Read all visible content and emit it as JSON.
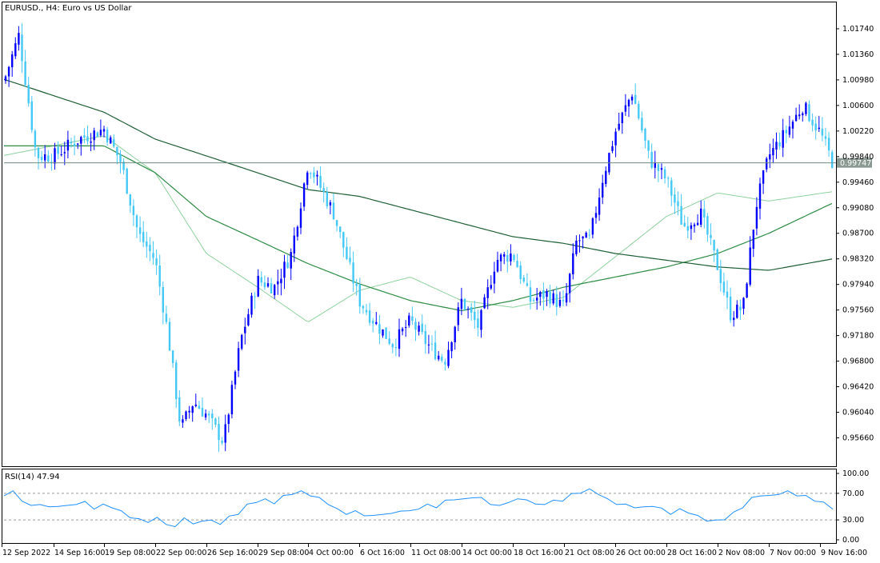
{
  "header": {
    "symbol_label": "EURUSD., H4:  Euro vs US Dollar"
  },
  "rsi_panel": {
    "label": "RSI(14) 47.94",
    "y_ticks": [
      "100.00",
      "70.00",
      "30.00",
      "0.00"
    ]
  },
  "current_price_label": "0.99747",
  "colors": {
    "bull_candle": "#0000ff",
    "bear_candle": "#44c8f5",
    "ma_fast": "#8fd19e",
    "ma_mid": "#2e8b44",
    "ma_slow": "#1f5f35",
    "rsi_line": "#1e90ff",
    "price_line": "#6b8e7f"
  },
  "chart_data": [
    {
      "type": "candlestick",
      "title": "EURUSD., H4:  Euro vs US Dollar",
      "timeframe": "H4",
      "x_ticks": [
        "12 Sep 2022",
        "14 Sep 16:00",
        "19 Sep 08:00",
        "22 Sep 00:00",
        "26 Sep 16:00",
        "29 Sep 08:00",
        "4 Oct 00:00",
        "6 Oct 16:00",
        "11 Oct 08:00",
        "14 Oct 00:00",
        "18 Oct 16:00",
        "21 Oct 08:00",
        "26 Oct 00:00",
        "28 Oct 16:00",
        "2 Nov 08:00",
        "7 Nov 00:00",
        "9 Nov 16:00"
      ],
      "y_ticks": [
        "1.01740",
        "1.01360",
        "1.00980",
        "1.00600",
        "1.00220",
        "0.99840",
        "0.99460",
        "0.99080",
        "0.98700",
        "0.98320",
        "0.97940",
        "0.97560",
        "0.97180",
        "0.96800",
        "0.96420",
        "0.96040",
        "0.95660"
      ],
      "ylim": [
        0.9525,
        1.0212
      ],
      "last_price": 0.99747,
      "anchors": [
        {
          "t": "12 Sep 2022",
          "v": 1.0085
        },
        {
          "t": "13 Sep",
          "v": 1.0165
        },
        {
          "t": "13 Sep 16:00",
          "v": 0.9985
        },
        {
          "t": "14 Sep 16:00",
          "v": 0.9985
        },
        {
          "t": "16 Sep",
          "v": 1.001
        },
        {
          "t": "19 Sep 08:00",
          "v": 1.0025
        },
        {
          "t": "20 Sep",
          "v": 0.9975
        },
        {
          "t": "21 Sep",
          "v": 0.987
        },
        {
          "t": "22 Sep 00:00",
          "v": 0.983
        },
        {
          "t": "23 Sep",
          "v": 0.972
        },
        {
          "t": "23 Sep 16:00",
          "v": 0.958
        },
        {
          "t": "26 Sep",
          "v": 0.962
        },
        {
          "t": "26 Sep 16:00",
          "v": 0.96
        },
        {
          "t": "27 Sep",
          "v": 0.956
        },
        {
          "t": "28 Sep",
          "v": 0.971
        },
        {
          "t": "29 Sep 08:00",
          "v": 0.98
        },
        {
          "t": "30 Sep",
          "v": 0.979
        },
        {
          "t": "3 Oct",
          "v": 0.984
        },
        {
          "t": "4 Oct 00:00",
          "v": 0.9975
        },
        {
          "t": "5 Oct",
          "v": 0.99
        },
        {
          "t": "6 Oct 16:00",
          "v": 0.977
        },
        {
          "t": "7 Oct",
          "v": 0.9735
        },
        {
          "t": "10 Oct",
          "v": 0.9705
        },
        {
          "t": "11 Oct 08:00",
          "v": 0.974
        },
        {
          "t": "12 Oct",
          "v": 0.9705
        },
        {
          "t": "13 Oct",
          "v": 0.968
        },
        {
          "t": "14 Oct 00:00",
          "v": 0.977
        },
        {
          "t": "14 Oct 16:00",
          "v": 0.973
        },
        {
          "t": "17 Oct",
          "v": 0.983
        },
        {
          "t": "18 Oct 16:00",
          "v": 0.984
        },
        {
          "t": "19 Oct",
          "v": 0.977
        },
        {
          "t": "20 Oct",
          "v": 0.978
        },
        {
          "t": "21 Oct 08:00",
          "v": 0.976
        },
        {
          "t": "21 Oct 16:00",
          "v": 0.986
        },
        {
          "t": "24 Oct",
          "v": 0.986
        },
        {
          "t": "25 Oct",
          "v": 0.995
        },
        {
          "t": "26 Oct 00:00",
          "v": 1.002
        },
        {
          "t": "26 Oct 16:00",
          "v": 1.008
        },
        {
          "t": "27 Oct",
          "v": 0.998
        },
        {
          "t": "28 Oct 16:00",
          "v": 0.995
        },
        {
          "t": "31 Oct",
          "v": 0.988
        },
        {
          "t": "1 Nov",
          "v": 0.99
        },
        {
          "t": "2 Nov 08:00",
          "v": 0.982
        },
        {
          "t": "3 Nov",
          "v": 0.975
        },
        {
          "t": "4 Nov",
          "v": 0.976
        },
        {
          "t": "4 Nov 16:00",
          "v": 0.991
        },
        {
          "t": "7 Nov 00:00",
          "v": 0.9985
        },
        {
          "t": "8 Nov",
          "v": 1.002
        },
        {
          "t": "9 Nov",
          "v": 1.006
        },
        {
          "t": "9 Nov 16:00",
          "v": 1.002
        },
        {
          "t": "10 Nov",
          "v": 0.99747
        }
      ],
      "moving_averages": [
        {
          "color_key": "ma_fast",
          "anchors": [
            {
              "t": "12 Sep 2022",
              "v": 0.9985
            },
            {
              "t": "19 Sep 08:00",
              "v": 1.0015
            },
            {
              "t": "22 Sep 00:00",
              "v": 0.996
            },
            {
              "t": "26 Sep 16:00",
              "v": 0.984
            },
            {
              "t": "29 Sep 08:00",
              "v": 0.979
            },
            {
              "t": "4 Oct 00:00",
              "v": 0.9738
            },
            {
              "t": "6 Oct 16:00",
              "v": 0.9785
            },
            {
              "t": "11 Oct 08:00",
              "v": 0.9805
            },
            {
              "t": "14 Oct 00:00",
              "v": 0.977
            },
            {
              "t": "18 Oct 16:00",
              "v": 0.976
            },
            {
              "t": "21 Oct 08:00",
              "v": 0.9775
            },
            {
              "t": "26 Oct 00:00",
              "v": 0.9835
            },
            {
              "t": "28 Oct 16:00",
              "v": 0.9895
            },
            {
              "t": "2 Nov 08:00",
              "v": 0.993
            },
            {
              "t": "7 Nov 00:00",
              "v": 0.9918
            },
            {
              "t": "10 Nov",
              "v": 0.9932
            }
          ]
        },
        {
          "color_key": "ma_mid",
          "anchors": [
            {
              "t": "12 Sep 2022",
              "v": 1.0
            },
            {
              "t": "19 Sep 08:00",
              "v": 1.0
            },
            {
              "t": "22 Sep 00:00",
              "v": 0.996
            },
            {
              "t": "26 Sep 16:00",
              "v": 0.9895
            },
            {
              "t": "29 Sep 08:00",
              "v": 0.986
            },
            {
              "t": "4 Oct 00:00",
              "v": 0.9825
            },
            {
              "t": "6 Oct 16:00",
              "v": 0.9795
            },
            {
              "t": "11 Oct 08:00",
              "v": 0.977
            },
            {
              "t": "14 Oct 00:00",
              "v": 0.9755
            },
            {
              "t": "18 Oct 16:00",
              "v": 0.977
            },
            {
              "t": "21 Oct 08:00",
              "v": 0.979
            },
            {
              "t": "26 Oct 00:00",
              "v": 0.9805
            },
            {
              "t": "28 Oct 16:00",
              "v": 0.982
            },
            {
              "t": "2 Nov 08:00",
              "v": 0.984
            },
            {
              "t": "7 Nov 00:00",
              "v": 0.987
            },
            {
              "t": "10 Nov",
              "v": 0.9915
            }
          ]
        },
        {
          "color_key": "ma_slow",
          "anchors": [
            {
              "t": "12 Sep 2022",
              "v": 1.01
            },
            {
              "t": "19 Sep 08:00",
              "v": 1.005
            },
            {
              "t": "22 Sep 00:00",
              "v": 1.001
            },
            {
              "t": "26 Sep 16:00",
              "v": 0.9985
            },
            {
              "t": "29 Sep 08:00",
              "v": 0.996
            },
            {
              "t": "4 Oct 00:00",
              "v": 0.9935
            },
            {
              "t": "6 Oct 16:00",
              "v": 0.9925
            },
            {
              "t": "11 Oct 08:00",
              "v": 0.9905
            },
            {
              "t": "14 Oct 00:00",
              "v": 0.9885
            },
            {
              "t": "18 Oct 16:00",
              "v": 0.9865
            },
            {
              "t": "21 Oct 08:00",
              "v": 0.9855
            },
            {
              "t": "26 Oct 00:00",
              "v": 0.984
            },
            {
              "t": "28 Oct 16:00",
              "v": 0.983
            },
            {
              "t": "2 Nov 08:00",
              "v": 0.982
            },
            {
              "t": "7 Nov 00:00",
              "v": 0.9815
            },
            {
              "t": "10 Nov",
              "v": 0.9832
            }
          ]
        }
      ]
    },
    {
      "type": "line",
      "title": "RSI(14) 47.94",
      "ylim": [
        0,
        100
      ],
      "y_ticks": [
        100,
        70,
        30,
        0
      ],
      "levels": [
        70,
        30
      ],
      "values": [
        68,
        72,
        60,
        50,
        55,
        48,
        52,
        50,
        55,
        56,
        48,
        52,
        50,
        42,
        35,
        30,
        28,
        32,
        25,
        18,
        35,
        22,
        30,
        28,
        25,
        34,
        40,
        52,
        58,
        60,
        56,
        65,
        70,
        72,
        68,
        62,
        55,
        45,
        40,
        42,
        38,
        35,
        40,
        38,
        45,
        42,
        48,
        52,
        50,
        58,
        62,
        60,
        65,
        62,
        55,
        50,
        58,
        60,
        62,
        52,
        55,
        58,
        60,
        68,
        72,
        75,
        70,
        60,
        55,
        52,
        50,
        48,
        52,
        46,
        40,
        45,
        42,
        35,
        30,
        28,
        32,
        40,
        50,
        62,
        68,
        65,
        70,
        72,
        68,
        65,
        60,
        55,
        47.94
      ]
    }
  ]
}
